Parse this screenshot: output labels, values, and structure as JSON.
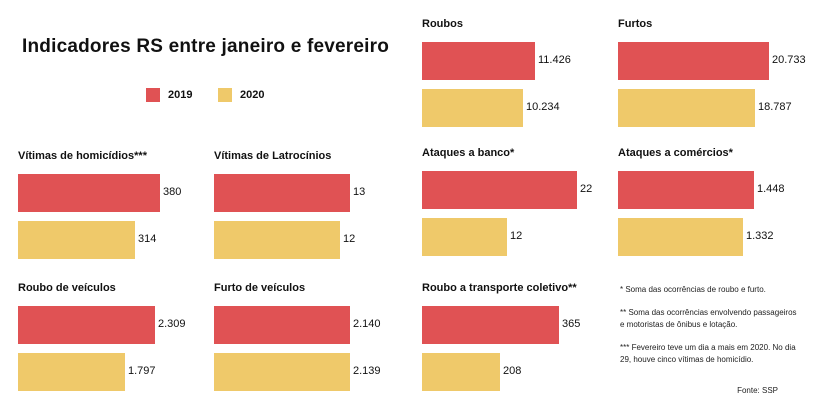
{
  "title": "Indicadores RS entre janeiro e fevereiro",
  "legend": [
    {
      "label": "2019",
      "color": "#e05254"
    },
    {
      "label": "2020",
      "color": "#efc96a"
    }
  ],
  "chart_data": [
    {
      "type": "bar",
      "title": "Roubos",
      "categories": [
        "2019",
        "2020"
      ],
      "values": [
        11426,
        10234
      ],
      "value_labels": [
        "11.426",
        "10.234"
      ]
    },
    {
      "type": "bar",
      "title": "Furtos",
      "categories": [
        "2019",
        "2020"
      ],
      "values": [
        20733,
        18787
      ],
      "value_labels": [
        "20.733",
        "18.787"
      ]
    },
    {
      "type": "bar",
      "title": "Vítimas de homicídios***",
      "categories": [
        "2019",
        "2020"
      ],
      "values": [
        380,
        314
      ],
      "value_labels": [
        "380",
        "314"
      ]
    },
    {
      "type": "bar",
      "title": "Vítimas de Latrocínios",
      "categories": [
        "2019",
        "2020"
      ],
      "values": [
        13,
        12
      ],
      "value_labels": [
        "13",
        "12"
      ]
    },
    {
      "type": "bar",
      "title": "Ataques a banco*",
      "categories": [
        "2019",
        "2020"
      ],
      "values": [
        22,
        12
      ],
      "value_labels": [
        "22",
        "12"
      ]
    },
    {
      "type": "bar",
      "title": "Ataques a comércios*",
      "categories": [
        "2019",
        "2020"
      ],
      "values": [
        1448,
        1332
      ],
      "value_labels": [
        "1.448",
        "1.332"
      ]
    },
    {
      "type": "bar",
      "title": "Roubo de veículos",
      "categories": [
        "2019",
        "2020"
      ],
      "values": [
        2309,
        1797
      ],
      "value_labels": [
        "2.309",
        "1.797"
      ]
    },
    {
      "type": "bar",
      "title": "Furto de veículos",
      "categories": [
        "2019",
        "2020"
      ],
      "values": [
        2140,
        2139
      ],
      "value_labels": [
        "2.140",
        "2.139"
      ]
    },
    {
      "type": "bar",
      "title": "Roubo a transporte coletivo**",
      "categories": [
        "2019",
        "2020"
      ],
      "values": [
        365,
        208
      ],
      "value_labels": [
        "365",
        "208"
      ]
    }
  ],
  "notes": [
    "* Soma das ocorrências de roubo e furto.",
    "** Soma das ocorrências envolvendo passageiros e motoristas de ônibus e lotação.",
    "*** Fevereiro teve um dia a mais em 2020. No dia 29, houve cinco vítimas de homicídio."
  ],
  "source": "Fonte: SSP"
}
